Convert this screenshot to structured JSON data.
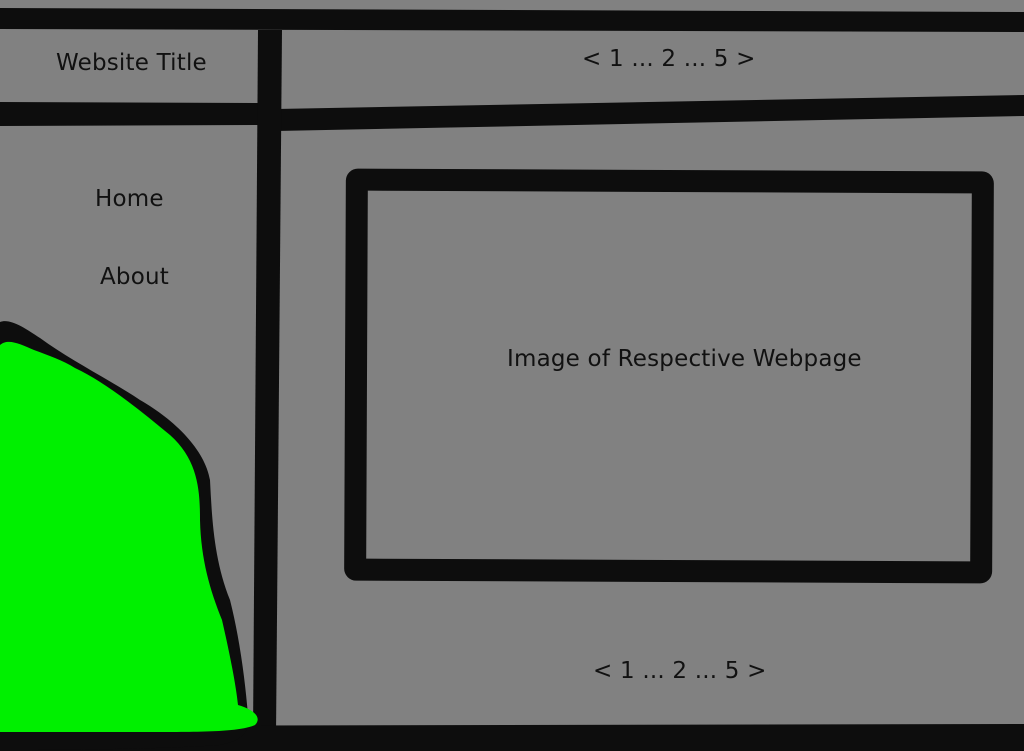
{
  "header": {
    "site_title": "Website Title",
    "pagination_top": "< 1 ... 2 ... 5 >"
  },
  "sidebar": {
    "items": [
      {
        "label": "Home"
      },
      {
        "label": "About"
      }
    ]
  },
  "main": {
    "image_placeholder_label": "Image of Respective Webpage",
    "pagination_bottom": "< 1 ... 2 ... 5 >"
  },
  "colors": {
    "background": "#818181",
    "stroke": "#0d0d0d",
    "blob": "#00f000"
  }
}
